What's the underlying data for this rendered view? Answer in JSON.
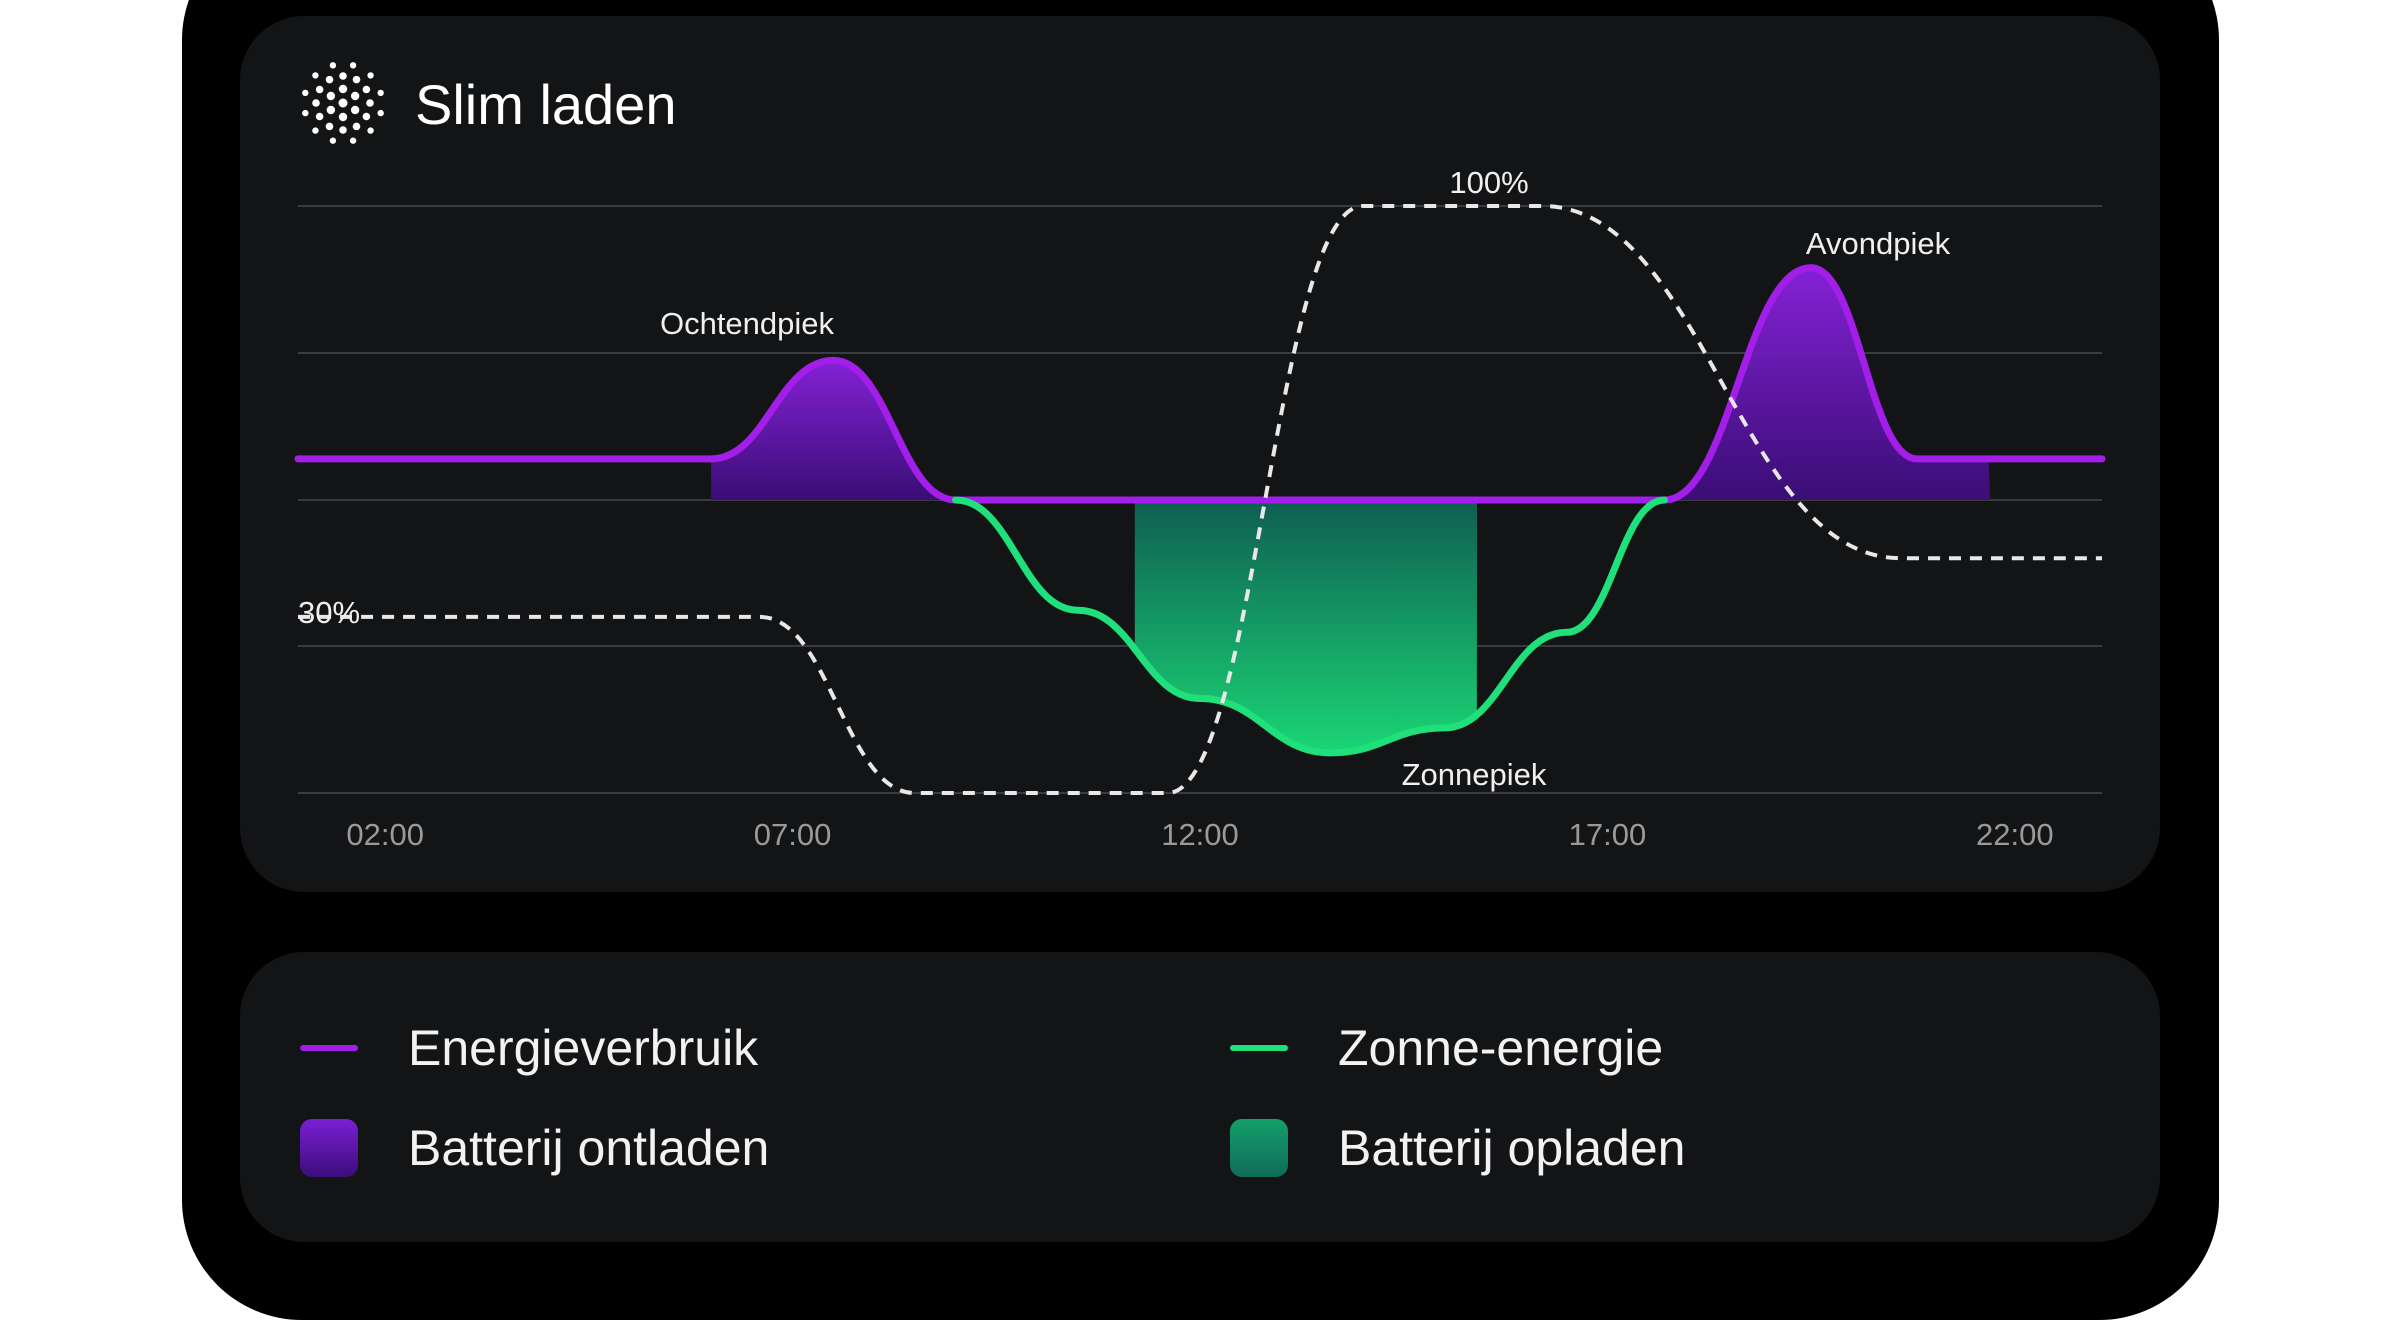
{
  "app": {
    "title": "Slim laden",
    "logo_icon": "dotted-sun-icon"
  },
  "colors": {
    "consumption": "#a31ee8",
    "solar": "#1fe07a",
    "discharge_top": "#7a1fd6",
    "discharge_bottom": "#3c0d7a",
    "charge_top": "#0f6b5a",
    "charge_bottom": "#18e07a",
    "battery_line": "#e8e8e8",
    "grid": "#3a3b3e",
    "tick": "#9a9a9a"
  },
  "chart_data": {
    "type": "line",
    "x": {
      "ticks": [
        "02:00",
        "07:00",
        "12:00",
        "17:00",
        "22:00"
      ],
      "range_hours": [
        0.93,
        23.07
      ]
    },
    "series": [
      {
        "name": "Energieverbruik",
        "points": [
          [
            0.93,
            0.28
          ],
          [
            6.0,
            0.28
          ],
          [
            7.5,
            0.95
          ],
          [
            9.0,
            0.0
          ],
          [
            17.7,
            0.0
          ],
          [
            19.5,
            1.58
          ],
          [
            20.8,
            0.28
          ],
          [
            23.07,
            0.28
          ]
        ]
      },
      {
        "name": "Zonne-energie",
        "points": [
          [
            9.0,
            0.0
          ],
          [
            10.5,
            -0.75
          ],
          [
            12.0,
            -1.35
          ],
          [
            13.6,
            -1.72
          ],
          [
            15.0,
            -1.55
          ],
          [
            16.5,
            -0.9
          ],
          [
            17.7,
            0.0
          ]
        ]
      },
      {
        "name": "battery_level",
        "points": [
          [
            0.93,
            30
          ],
          [
            6.6,
            30
          ],
          [
            8.5,
            0
          ],
          [
            11.6,
            0
          ],
          [
            14.0,
            100
          ],
          [
            16.2,
            100
          ],
          [
            20.6,
            40
          ],
          [
            23.07,
            40
          ]
        ]
      }
    ],
    "fills": [
      {
        "name": "Batterij ontladen",
        "x_range": [
          6.0,
          9.0
        ]
      },
      {
        "name": "Batterij ontladen",
        "x_range": [
          17.7,
          21.7
        ]
      },
      {
        "name": "Batterij opladen",
        "x_range": [
          11.2,
          15.4
        ]
      }
    ],
    "annotations": [
      {
        "text": "Ochtendpiek"
      },
      {
        "text": "Avondpiek"
      },
      {
        "text": "Zonnepiek"
      },
      {
        "text": "100%"
      },
      {
        "text": "30%"
      }
    ],
    "grid": true
  },
  "legend": {
    "items": [
      {
        "label": "Energieverbruik",
        "kind": "line",
        "color": "#a31ee8"
      },
      {
        "label": "Zonne-energie",
        "kind": "line",
        "color": "#1fe07a"
      },
      {
        "label": "Batterij ontladen",
        "kind": "swatch",
        "color": "#5a16b8"
      },
      {
        "label": "Batterij opladen",
        "kind": "swatch",
        "color": "#14a06a"
      }
    ]
  }
}
